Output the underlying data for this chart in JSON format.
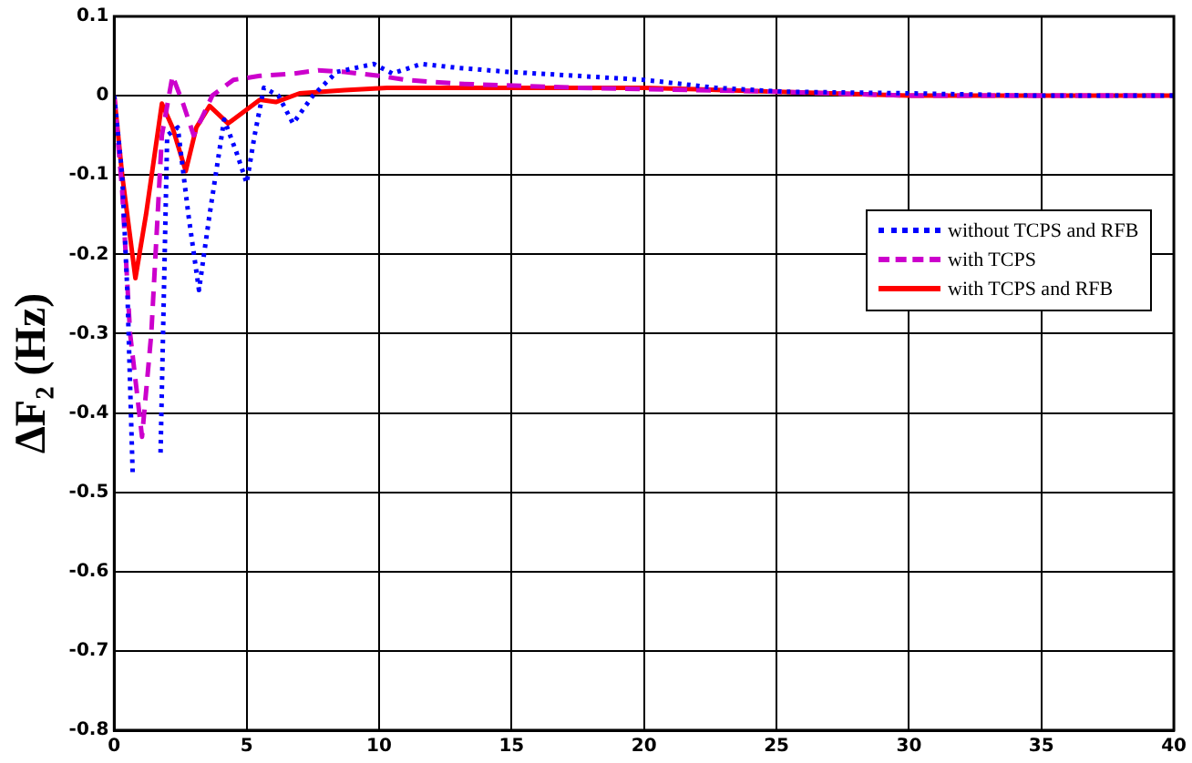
{
  "chart_data": {
    "type": "line",
    "ylabel": "ΔF₂ (Hz)",
    "xlim": [
      0,
      40
    ],
    "xticks": [
      0,
      5,
      10,
      15,
      20,
      25,
      30,
      35,
      40
    ],
    "ylim": [
      -0.8,
      0.1
    ],
    "yticks": [
      -0.8,
      -0.7,
      -0.6,
      -0.5,
      -0.4,
      -0.3,
      -0.2,
      -0.1,
      0,
      0.1
    ],
    "grid": true,
    "legend": "right",
    "marker": "none",
    "series": [
      {
        "name": "without TCPS and RFB",
        "color": "#0000ff",
        "line_style": "dotted",
        "x": [
          0,
          0.3,
          0.5,
          0.7,
          1.0,
          1.7,
          1.75,
          2.0,
          2.4,
          2.8,
          3.2,
          3.6,
          4.15,
          4.6,
          5.0,
          5.3,
          5.65,
          6.2,
          6.75,
          7.5,
          8.4,
          9.8,
          10.5,
          11.6,
          13,
          14.9,
          17.5,
          20,
          22.7,
          25.3,
          30,
          35,
          40
        ],
        "values": [
          0,
          -0.1,
          -0.25,
          -0.48,
          null,
          null,
          -0.45,
          -0.05,
          -0.04,
          -0.15,
          -0.245,
          -0.15,
          -0.03,
          -0.07,
          -0.11,
          -0.05,
          0.01,
          0,
          -0.035,
          0,
          0.03,
          0.04,
          0.028,
          0.04,
          0.035,
          0.03,
          0.025,
          0.02,
          0.01,
          0.005,
          0.003,
          0,
          0
        ]
      },
      {
        "name": "with TCPS",
        "color": "#cc00cc",
        "line_style": "dashed",
        "x": [
          0,
          0.3,
          0.6,
          1.05,
          1.4,
          1.8,
          2.2,
          2.6,
          3.0,
          3.7,
          4.5,
          5.5,
          6.8,
          7.7,
          8.7,
          10,
          11,
          13,
          17.5,
          25,
          30,
          35,
          40
        ],
        "values": [
          0,
          -0.12,
          -0.3,
          -0.43,
          -0.3,
          -0.05,
          0.025,
          -0.01,
          -0.05,
          0,
          0.02,
          0.025,
          0.028,
          0.032,
          0.03,
          0.025,
          0.02,
          0.015,
          0.01,
          0.005,
          0,
          0,
          0
        ]
      },
      {
        "name": "with TCPS and RFB",
        "color": "#ff0000",
        "line_style": "solid",
        "x": [
          0,
          0.3,
          0.8,
          1.2,
          1.8,
          2.2,
          2.7,
          3.1,
          3.6,
          4.3,
          5.5,
          6.1,
          7,
          8.7,
          10.3,
          20,
          25,
          30,
          35,
          40
        ],
        "values": [
          0,
          -0.1,
          -0.23,
          -0.15,
          -0.01,
          -0.04,
          -0.095,
          -0.04,
          -0.013,
          -0.035,
          -0.005,
          -0.008,
          0.003,
          0.007,
          0.01,
          0.01,
          0.005,
          0,
          0,
          0
        ]
      }
    ]
  }
}
